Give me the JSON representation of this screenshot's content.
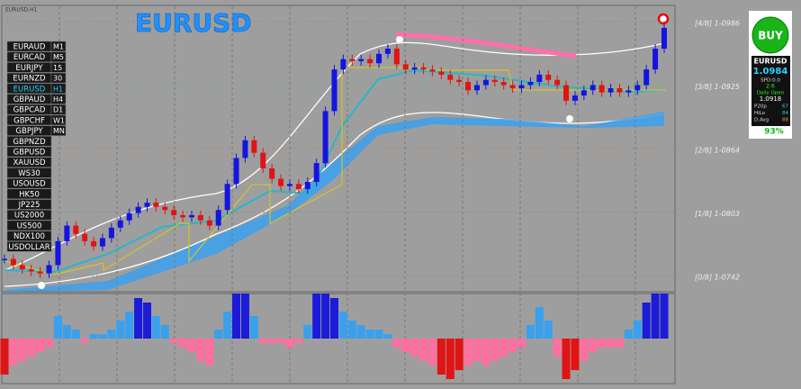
{
  "window_label": "EURUSD,H1",
  "title": "EURUSD",
  "symbols": [
    "EURAUD",
    "EURCAD",
    "EURJPY",
    "EURNZD",
    "EURUSD",
    "GBPAUD",
    "GBPCAD",
    "GBPCHF",
    "GBPJPY",
    "GBPNZD",
    "GBPUSD",
    "XAUUSD",
    "WS30",
    "USOUSD",
    "HK50",
    "JP225",
    "US2000",
    "US500",
    "NDX100",
    "USDOLLAR"
  ],
  "timeframes": [
    "M1",
    "M5",
    "15",
    "30",
    "H1",
    "H4",
    "D1",
    "W1",
    "MN"
  ],
  "murrey_levels": [
    {
      "value": 1.0986,
      "label": "[4/8] 1-0986"
    },
    {
      "value": 1.0925,
      "label": "[3/8] 1-0925"
    },
    {
      "value": 1.0864,
      "label": "[2/8] 1-0864"
    },
    {
      "value": 1.0803,
      "label": "[1/8] 1-0803"
    },
    {
      "value": 1.0742,
      "label": "[0/8] 1-0742"
    }
  ],
  "price_closes": [
    1.0758,
    1.0752,
    1.0748,
    1.0746,
    1.0744,
    1.0752,
    1.0775,
    1.079,
    1.0782,
    1.0775,
    1.077,
    1.0778,
    1.0788,
    1.0795,
    1.0802,
    1.0808,
    1.0812,
    1.0808,
    1.0805,
    1.08,
    1.0798,
    1.08,
    1.0795,
    1.079,
    1.0805,
    1.083,
    1.0855,
    1.0872,
    1.086,
    1.0845,
    1.0835,
    1.0828,
    1.083,
    1.0825,
    1.0832,
    1.085,
    1.09,
    1.094,
    1.095,
    1.0948,
    1.095,
    1.0946,
    1.0955,
    1.096,
    1.0945,
    1.094,
    1.0942,
    1.094,
    1.0938,
    1.0935,
    1.093,
    1.0928,
    1.092,
    1.0925,
    1.093,
    1.0928,
    1.0925,
    1.0922,
    1.0925,
    1.0928,
    1.0935,
    1.093,
    1.0925,
    1.091,
    1.0915,
    1.092,
    1.0925,
    1.0918,
    1.0922,
    1.0918,
    1.092,
    1.0925,
    1.094,
    1.096,
    1.098
  ],
  "histogram": [
    -0.8,
    -0.6,
    -0.5,
    -0.4,
    -0.3,
    -0.2,
    0.5,
    0.3,
    0.2,
    -0.1,
    0.1,
    0.1,
    0.2,
    0.4,
    0.6,
    0.9,
    0.8,
    0.5,
    0.3,
    -0.1,
    -0.2,
    -0.3,
    -0.5,
    -0.6,
    0.2,
    0.6,
    1.0,
    1.0,
    0.5,
    -0.1,
    -0.1,
    -0.1,
    -0.2,
    -0.1,
    0.3,
    1.0,
    1.0,
    0.9,
    0.6,
    0.4,
    0.3,
    0.2,
    0.2,
    0.1,
    -0.2,
    -0.3,
    -0.4,
    -0.5,
    -0.6,
    -0.8,
    -0.9,
    -0.7,
    -0.6,
    -0.5,
    -0.6,
    -0.5,
    -0.4,
    -0.3,
    -0.2,
    0.3,
    0.7,
    0.4,
    -0.4,
    -0.9,
    -0.7,
    -0.5,
    -0.3,
    -0.2,
    -0.2,
    -0.2,
    0.2,
    0.4,
    0.8,
    1.0,
    1.0
  ],
  "panel": {
    "button": "BUY",
    "symbol": "EURUSD",
    "price": "1.0984",
    "spread": "SPD:0.0",
    "time": "2:6",
    "daily_open_label": "Daily Open",
    "daily_open": "1.0918",
    "stats": [
      [
        "P20p",
        "67"
      ],
      [
        "HiLo",
        "84"
      ],
      [
        "D.Avg",
        "88"
      ]
    ],
    "percent": "93%"
  }
}
